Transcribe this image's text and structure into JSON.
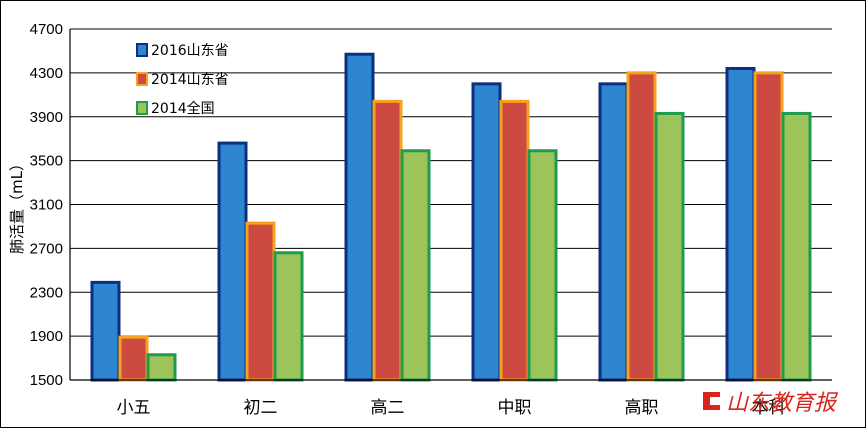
{
  "chart_data": {
    "type": "bar",
    "title": "",
    "xlabel": "",
    "ylabel": "肺活量（mL）",
    "ylim": [
      1500,
      4700
    ],
    "yticks": [
      1500,
      1900,
      2300,
      2700,
      3100,
      3500,
      3900,
      4300,
      4700
    ],
    "categories": [
      "小五",
      "初二",
      "高二",
      "中职",
      "高职",
      "本科"
    ],
    "legend_position": "top-left",
    "grid": true,
    "series": [
      {
        "name": "2016山东省",
        "values": [
          2390,
          3660,
          4470,
          4200,
          4200,
          4340
        ],
        "fill": "#2e86d0",
        "stroke": "#0d2f7e"
      },
      {
        "name": "2014山东省",
        "values": [
          1890,
          2930,
          4040,
          4040,
          4300,
          4300
        ],
        "fill": "#cc4a42",
        "stroke": "#f6a21e"
      },
      {
        "name": "2014全国",
        "values": [
          1730,
          2660,
          3590,
          3590,
          3930,
          3930
        ],
        "fill": "#9cc45a",
        "stroke": "#1f9a4f"
      }
    ]
  },
  "watermark": {
    "text": "山东教育报",
    "color": "#d9261c"
  }
}
